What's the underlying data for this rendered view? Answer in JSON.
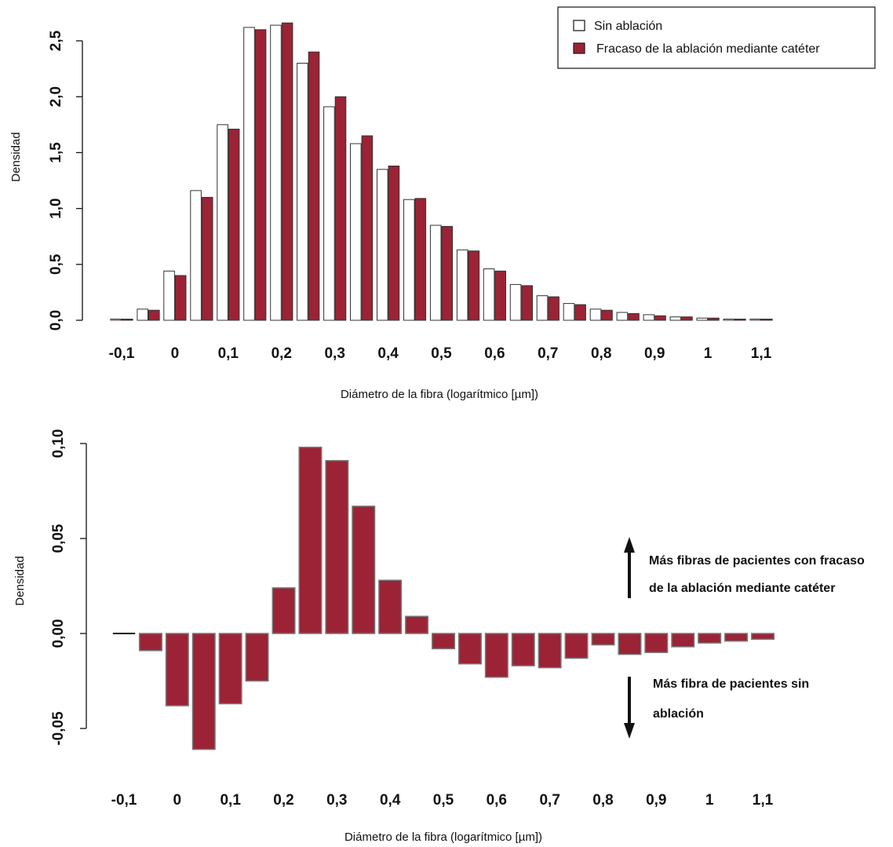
{
  "chart_data": [
    {
      "type": "bar",
      "xlabel": "Diámetro de la fibra (logarítmico [µm])",
      "ylabel": "Densidad",
      "ylim": [
        0,
        2.7
      ],
      "yticks": [
        "0,0",
        "0,5",
        "1,0",
        "1,5",
        "2,0",
        "2,5"
      ],
      "ytick_values": [
        0,
        0.5,
        1.0,
        1.5,
        2.0,
        2.5
      ],
      "xticks": [
        "-0,1",
        "0",
        "0,1",
        "0,2",
        "0,3",
        "0,4",
        "0,5",
        "0,6",
        "0,7",
        "0,8",
        "0,9",
        "1",
        "1,1"
      ],
      "xtick_values": [
        -0.1,
        0,
        0.1,
        0.2,
        0.3,
        0.4,
        0.5,
        0.6,
        0.7,
        0.8,
        0.9,
        1.0,
        1.1
      ],
      "x": [
        -0.1,
        -0.05,
        0,
        0.05,
        0.1,
        0.15,
        0.2,
        0.25,
        0.3,
        0.35,
        0.4,
        0.45,
        0.5,
        0.55,
        0.6,
        0.65,
        0.7,
        0.75,
        0.8,
        0.85,
        0.9,
        0.95,
        1.0,
        1.05,
        1.1
      ],
      "series": [
        {
          "name": "Sin ablación",
          "color": "#ffffff",
          "values": [
            0.0,
            0.1,
            0.44,
            1.16,
            1.75,
            2.62,
            2.64,
            2.3,
            1.91,
            1.58,
            1.35,
            1.08,
            0.85,
            0.63,
            0.46,
            0.32,
            0.22,
            0.15,
            0.1,
            0.07,
            0.05,
            0.03,
            0.02,
            0.01,
            0.0
          ]
        },
        {
          "name": "Fracaso de la ablación mediante catéter",
          "color": "#9b2335",
          "values": [
            0.0,
            0.09,
            0.4,
            1.1,
            1.71,
            2.6,
            2.66,
            2.4,
            2.0,
            1.65,
            1.38,
            1.09,
            0.84,
            0.62,
            0.44,
            0.31,
            0.21,
            0.14,
            0.09,
            0.06,
            0.04,
            0.03,
            0.02,
            0.01,
            0.0
          ]
        }
      ],
      "legend": "top-right"
    },
    {
      "type": "bar",
      "xlabel": "Diámetro de la fibra (logarítmico [µm])",
      "ylabel": "Densidad",
      "ylim": [
        -0.06,
        0.1
      ],
      "yticks": [
        "-0,05",
        "0,00",
        "0,05",
        "0,10"
      ],
      "ytick_values": [
        -0.05,
        0.0,
        0.05,
        0.1
      ],
      "xticks": [
        "-0,1",
        "0",
        "0,1",
        "0,2",
        "0,3",
        "0,4",
        "0,5",
        "0,6",
        "0,7",
        "0,8",
        "0,9",
        "1",
        "1,1"
      ],
      "xtick_values": [
        -0.1,
        0,
        0.1,
        0.2,
        0.3,
        0.4,
        0.5,
        0.6,
        0.7,
        0.8,
        0.9,
        1.0,
        1.1
      ],
      "x": [
        -0.1,
        -0.05,
        0,
        0.05,
        0.1,
        0.15,
        0.2,
        0.25,
        0.3,
        0.35,
        0.4,
        0.45,
        0.5,
        0.55,
        0.6,
        0.65,
        0.7,
        0.75,
        0.8,
        0.85,
        0.9,
        0.95,
        1.0,
        1.05,
        1.1
      ],
      "color": "#9b2335",
      "values": [
        0.0,
        -0.009,
        -0.038,
        -0.061,
        -0.037,
        -0.025,
        0.024,
        0.098,
        0.091,
        0.067,
        0.028,
        0.009,
        -0.008,
        -0.016,
        -0.023,
        -0.017,
        -0.018,
        -0.013,
        -0.006,
        -0.011,
        -0.01,
        -0.007,
        -0.005,
        -0.004,
        -0.003
      ],
      "annotations": [
        {
          "direction": "up",
          "lines": [
            "Más fibras de pacientes con fracaso",
            "de la ablación mediante catéter"
          ]
        },
        {
          "direction": "down",
          "lines": [
            "Más fibra de pacientes sin",
            "ablación"
          ]
        }
      ]
    }
  ]
}
